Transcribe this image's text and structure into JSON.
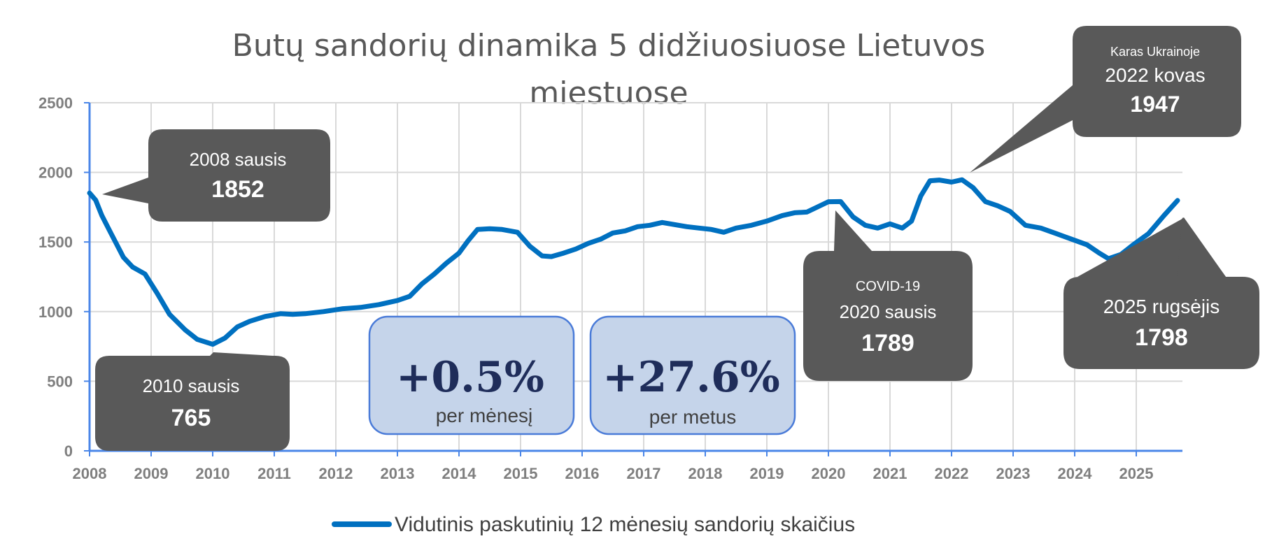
{
  "chart_data": {
    "type": "line",
    "title_line1": "Butų sandorių dinamika 5 didžiuosiuose  Lietuvos",
    "title_line2": "miestuose",
    "xlabel": "",
    "ylabel": "",
    "ylim": [
      0,
      2500
    ],
    "xlim": [
      2008,
      2025.75
    ],
    "yticks": [
      "0",
      "500",
      "1000",
      "1500",
      "2000",
      "2500"
    ],
    "xticks": [
      "2008",
      "2009",
      "2010",
      "2011",
      "2012",
      "2013",
      "2014",
      "2015",
      "2016",
      "2017",
      "2018",
      "2019",
      "2020",
      "2021",
      "2022",
      "2023",
      "2024",
      "2025"
    ],
    "grid": true,
    "legend_position": "bottom",
    "series": [
      {
        "name": "Vidutinis paskutinių 12 mėnesių sandorių skaičius",
        "color": "#0070c0",
        "points": [
          [
            2008.0,
            1852
          ],
          [
            2008.1,
            1800
          ],
          [
            2008.2,
            1690
          ],
          [
            2008.35,
            1560
          ],
          [
            2008.55,
            1390
          ],
          [
            2008.7,
            1320
          ],
          [
            2008.9,
            1270
          ],
          [
            2009.1,
            1130
          ],
          [
            2009.3,
            980
          ],
          [
            2009.55,
            870
          ],
          [
            2009.75,
            800
          ],
          [
            2010.0,
            765
          ],
          [
            2010.2,
            810
          ],
          [
            2010.4,
            890
          ],
          [
            2010.6,
            930
          ],
          [
            2010.85,
            965
          ],
          [
            2011.1,
            985
          ],
          [
            2011.3,
            980
          ],
          [
            2011.5,
            985
          ],
          [
            2011.8,
            1000
          ],
          [
            2012.1,
            1020
          ],
          [
            2012.4,
            1030
          ],
          [
            2012.7,
            1050
          ],
          [
            2013.0,
            1080
          ],
          [
            2013.2,
            1110
          ],
          [
            2013.4,
            1200
          ],
          [
            2013.6,
            1270
          ],
          [
            2013.8,
            1350
          ],
          [
            2014.0,
            1420
          ],
          [
            2014.15,
            1510
          ],
          [
            2014.3,
            1590
          ],
          [
            2014.5,
            1595
          ],
          [
            2014.7,
            1590
          ],
          [
            2014.95,
            1570
          ],
          [
            2015.15,
            1470
          ],
          [
            2015.35,
            1400
          ],
          [
            2015.5,
            1395
          ],
          [
            2015.7,
            1420
          ],
          [
            2015.9,
            1450
          ],
          [
            2016.1,
            1490
          ],
          [
            2016.3,
            1520
          ],
          [
            2016.5,
            1565
          ],
          [
            2016.7,
            1580
          ],
          [
            2016.9,
            1610
          ],
          [
            2017.1,
            1620
          ],
          [
            2017.3,
            1640
          ],
          [
            2017.5,
            1625
          ],
          [
            2017.7,
            1610
          ],
          [
            2017.9,
            1600
          ],
          [
            2018.1,
            1590
          ],
          [
            2018.3,
            1570
          ],
          [
            2018.5,
            1600
          ],
          [
            2018.75,
            1620
          ],
          [
            2019.0,
            1650
          ],
          [
            2019.25,
            1690
          ],
          [
            2019.45,
            1710
          ],
          [
            2019.65,
            1715
          ],
          [
            2020.0,
            1789
          ],
          [
            2020.2,
            1790
          ],
          [
            2020.4,
            1680
          ],
          [
            2020.6,
            1620
          ],
          [
            2020.8,
            1600
          ],
          [
            2021.0,
            1630
          ],
          [
            2021.2,
            1600
          ],
          [
            2021.35,
            1650
          ],
          [
            2021.5,
            1830
          ],
          [
            2021.65,
            1940
          ],
          [
            2021.8,
            1945
          ],
          [
            2022.0,
            1930
          ],
          [
            2022.17,
            1947
          ],
          [
            2022.35,
            1890
          ],
          [
            2022.55,
            1790
          ],
          [
            2022.75,
            1760
          ],
          [
            2022.95,
            1720
          ],
          [
            2023.2,
            1620
          ],
          [
            2023.45,
            1600
          ],
          [
            2023.7,
            1560
          ],
          [
            2023.95,
            1520
          ],
          [
            2024.2,
            1480
          ],
          [
            2024.4,
            1420
          ],
          [
            2024.55,
            1380
          ],
          [
            2024.75,
            1410
          ],
          [
            2024.95,
            1480
          ],
          [
            2025.2,
            1560
          ],
          [
            2025.45,
            1690
          ],
          [
            2025.67,
            1798
          ]
        ]
      }
    ]
  },
  "callouts": [
    {
      "small": "",
      "line": "2008 sausis",
      "value": "1852"
    },
    {
      "small": "",
      "line": "2010 sausis",
      "value": "765"
    },
    {
      "small": "COVID-19",
      "line": "2020 sausis",
      "value": "1789"
    },
    {
      "small": "Karas Ukrainoje",
      "line": "2022 kovas",
      "value": "1947"
    },
    {
      "small": "",
      "line": "2025 rugsėjis",
      "value": "1798"
    }
  ],
  "stats": [
    {
      "value": "+0.5%",
      "label": "per mėnesį"
    },
    {
      "value": "+27.6%",
      "label": "per metus"
    }
  ],
  "colors": {
    "line": "#0070c0",
    "axis": "#4a86e8",
    "grid": "#d9d9d9",
    "callout_fill": "#595959",
    "stat_fill": "#c5d4ea",
    "stat_border": "#4a7bd8"
  }
}
